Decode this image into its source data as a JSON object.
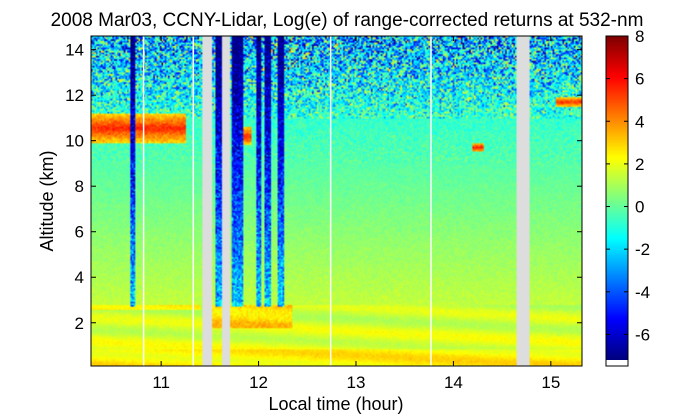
{
  "chart_data": {
    "type": "heatmap",
    "title": "2008 Mar03, CCNY-Lidar, Log(e) of range-corrected returns at 532-nm",
    "xlabel": "Local time (hour)",
    "ylabel": "Altitude (km)",
    "xlim": [
      10.28,
      15.32
    ],
    "ylim": [
      0.1,
      14.6
    ],
    "xticks": [
      11,
      12,
      13,
      14,
      15
    ],
    "xtick_labels": [
      "11",
      "12",
      "13",
      "14",
      "15"
    ],
    "yticks": [
      2,
      4,
      6,
      8,
      10,
      12,
      14
    ],
    "ytick_labels": [
      "2",
      "4",
      "6",
      "8",
      "10",
      "12",
      "14"
    ],
    "colorbar": {
      "range": [
        -7.2,
        8
      ],
      "ticks": [
        -6,
        -4,
        -2,
        0,
        2,
        4,
        6,
        8
      ],
      "tick_labels": [
        "-6",
        "-4",
        "-2",
        "0",
        "2",
        "4",
        "6",
        "8"
      ],
      "colormap": "jet"
    },
    "data_gaps": [
      [
        11.42,
        11.52
      ],
      [
        11.62,
        11.7
      ],
      [
        14.64,
        14.79
      ]
    ],
    "white_lines": [
      10.82,
      11.33,
      12.74,
      13.77
    ],
    "features": {
      "boundary_layer_top_km": 2.8,
      "cirrus": [
        {
          "x_start": 10.28,
          "x_end": 11.25,
          "y_bottom": 9.9,
          "y_top": 11.2
        },
        {
          "x_start": 11.85,
          "x_end": 11.92,
          "y_bottom": 9.8,
          "y_top": 10.6
        },
        {
          "x_start": 14.2,
          "x_end": 14.32,
          "y_bottom": 9.5,
          "y_top": 9.9
        },
        {
          "x_start": 15.05,
          "x_end": 15.32,
          "y_bottom": 11.5,
          "y_top": 11.9
        }
      ],
      "low_signal_columns": [
        {
          "x_start": 10.68,
          "x_end": 10.74
        },
        {
          "x_start": 11.55,
          "x_end": 11.62
        },
        {
          "x_start": 11.72,
          "x_end": 11.84
        },
        {
          "x_start": 11.97,
          "x_end": 12.03
        },
        {
          "x_start": 12.06,
          "x_end": 12.12
        },
        {
          "x_start": 12.2,
          "x_end": 12.26
        }
      ]
    }
  }
}
